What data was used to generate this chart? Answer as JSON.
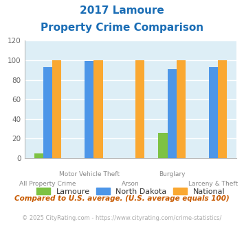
{
  "title_line1": "2017 Lamoure",
  "title_line2": "Property Crime Comparison",
  "categories": [
    "All Property Crime",
    "Motor Vehicle Theft",
    "Arson",
    "Burglary",
    "Larceny & Theft"
  ],
  "top_labels": [
    "",
    "Motor Vehicle Theft",
    "",
    "Burglary",
    ""
  ],
  "bottom_labels": [
    "All Property Crime",
    "",
    "Arson",
    "",
    "Larceny & Theft"
  ],
  "lamoure": [
    5,
    0,
    0,
    26,
    0
  ],
  "north_dakota": [
    93,
    99,
    0,
    91,
    93
  ],
  "national": [
    100,
    100,
    100,
    100,
    100
  ],
  "color_lamoure": "#7dc243",
  "color_north_dakota": "#4d96e8",
  "color_national": "#faa831",
  "ylim": [
    0,
    120
  ],
  "yticks": [
    0,
    20,
    40,
    60,
    80,
    100,
    120
  ],
  "bg_color": "#ddeef6",
  "grid_color": "#ffffff",
  "title_color": "#1a6db5",
  "subtitle_note": "Compared to U.S. average. (U.S. average equals 100)",
  "copyright": "© 2025 CityRating.com - https://www.cityrating.com/crime-statistics/",
  "legend_labels": [
    "Lamoure",
    "North Dakota",
    "National"
  ]
}
